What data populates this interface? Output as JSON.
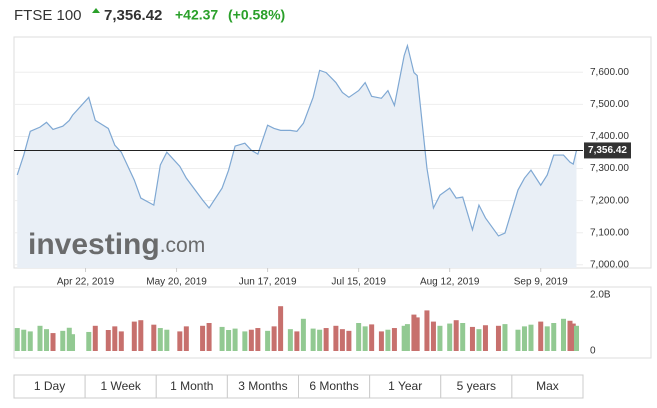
{
  "header": {
    "name": "FTSE 100",
    "change": "+42.37",
    "change_percent": "(+0.58%)"
  },
  "chart_data": {
    "type": "line",
    "x": [
      "2019-04-01",
      "2019-04-03",
      "2019-04-05",
      "2019-04-08",
      "2019-04-10",
      "2019-04-12",
      "2019-04-15",
      "2019-04-17",
      "2019-04-18",
      "2019-04-23",
      "2019-04-25",
      "2019-04-29",
      "2019-05-01",
      "2019-05-03",
      "2019-05-07",
      "2019-05-09",
      "2019-05-13",
      "2019-05-15",
      "2019-05-17",
      "2019-05-21",
      "2019-05-23",
      "2019-05-28",
      "2019-05-30",
      "2019-06-03",
      "2019-06-05",
      "2019-06-07",
      "2019-06-10",
      "2019-06-12",
      "2019-06-14",
      "2019-06-17",
      "2019-06-19",
      "2019-06-21",
      "2019-06-24",
      "2019-06-26",
      "2019-06-28",
      "2019-07-01",
      "2019-07-03",
      "2019-07-05",
      "2019-07-08",
      "2019-07-10",
      "2019-07-12",
      "2019-07-15",
      "2019-07-17",
      "2019-07-19",
      "2019-07-22",
      "2019-07-24",
      "2019-07-26",
      "2019-07-29",
      "2019-07-30",
      "2019-08-01",
      "2019-08-02",
      "2019-08-05",
      "2019-08-07",
      "2019-08-09",
      "2019-08-12",
      "2019-08-14",
      "2019-08-16",
      "2019-08-19",
      "2019-08-21",
      "2019-08-23",
      "2019-08-27",
      "2019-08-29",
      "2019-09-02",
      "2019-09-04",
      "2019-09-06",
      "2019-09-09",
      "2019-09-11",
      "2019-09-13",
      "2019-09-16",
      "2019-09-18",
      "2019-09-19",
      "2019-09-20"
    ],
    "values": [
      7280,
      7342,
      7416,
      7429,
      7444,
      7422,
      7432,
      7450,
      7466,
      7522,
      7450,
      7425,
      7373,
      7351,
      7264,
      7208,
      7186,
      7311,
      7351,
      7307,
      7270,
      7202,
      7177,
      7239,
      7295,
      7370,
      7379,
      7357,
      7345,
      7435,
      7425,
      7419,
      7419,
      7416,
      7441,
      7522,
      7606,
      7599,
      7568,
      7537,
      7522,
      7543,
      7568,
      7525,
      7519,
      7543,
      7497,
      7652,
      7683,
      7599,
      7590,
      7301,
      7177,
      7217,
      7239,
      7208,
      7211,
      7109,
      7186,
      7146,
      7090,
      7099,
      7233,
      7270,
      7295,
      7248,
      7280,
      7342,
      7342,
      7320,
      7314.05,
      7356.42
    ],
    "volumes": [
      820000000,
      760000000,
      700000000,
      900000000,
      780000000,
      640000000,
      720000000,
      830000000,
      600000000,
      680000000,
      900000000,
      750000000,
      880000000,
      700000000,
      1050000000,
      1100000000,
      940000000,
      820000000,
      760000000,
      700000000,
      880000000,
      900000000,
      1000000000,
      860000000,
      750000000,
      800000000,
      700000000,
      760000000,
      820000000,
      720000000,
      880000000,
      1600000000,
      780000000,
      700000000,
      1150000000,
      800000000,
      760000000,
      820000000,
      900000000,
      780000000,
      720000000,
      1000000000,
      880000000,
      950000000,
      700000000,
      760000000,
      820000000,
      900000000,
      960000000,
      1300000000,
      1200000000,
      1450000000,
      1050000000,
      900000000,
      980000000,
      1100000000,
      1000000000,
      860000000,
      780000000,
      920000000,
      900000000,
      960000000,
      760000000,
      880000000,
      940000000,
      1050000000,
      880000000,
      1000000000,
      1150000000,
      1080000000,
      980000000,
      900000000
    ],
    "xlim": [
      "2019-03-31",
      "2019-09-22"
    ],
    "xticks": [
      {
        "value": "2019-04-22",
        "label": "Apr 22, 2019"
      },
      {
        "value": "2019-05-20",
        "label": "May 20, 2019"
      },
      {
        "value": "2019-06-17",
        "label": "Jun 17, 2019"
      },
      {
        "value": "2019-07-15",
        "label": "Jul 15, 2019"
      },
      {
        "value": "2019-08-12",
        "label": "Aug 12, 2019"
      },
      {
        "value": "2019-09-09",
        "label": "Sep 9, 2019"
      }
    ],
    "ylim": [
      6990,
      7710
    ],
    "yticks": [
      {
        "value": 7000,
        "label": "7,000.00"
      },
      {
        "value": 7100,
        "label": "7,100.00"
      },
      {
        "value": 7200,
        "label": "7,200.00"
      },
      {
        "value": 7300,
        "label": "7,300.00"
      },
      {
        "value": 7400,
        "label": "7,400.00"
      },
      {
        "value": 7500,
        "label": "7,500.00"
      },
      {
        "value": 7600,
        "label": "7,600.00"
      }
    ],
    "volume_lim": [
      0,
      2000000000
    ],
    "volume_ticks": [
      {
        "value": 2000000000,
        "label": "2.0B"
      },
      0
    ],
    "last_price": {
      "value": 7356.42,
      "label": "7,356.42"
    },
    "watermark": [
      "investing",
      ".com"
    ],
    "color": "#7fa8d3",
    "fill_color": "#e9eff6",
    "up_color": "#92c992",
    "down_color": "#c7706d",
    "grid": true
  },
  "range_buttons": [
    "1 Day",
    "1 Week",
    "1 Month",
    "3 Months",
    "6 Months",
    "1 Year",
    "5 years",
    "Max"
  ]
}
